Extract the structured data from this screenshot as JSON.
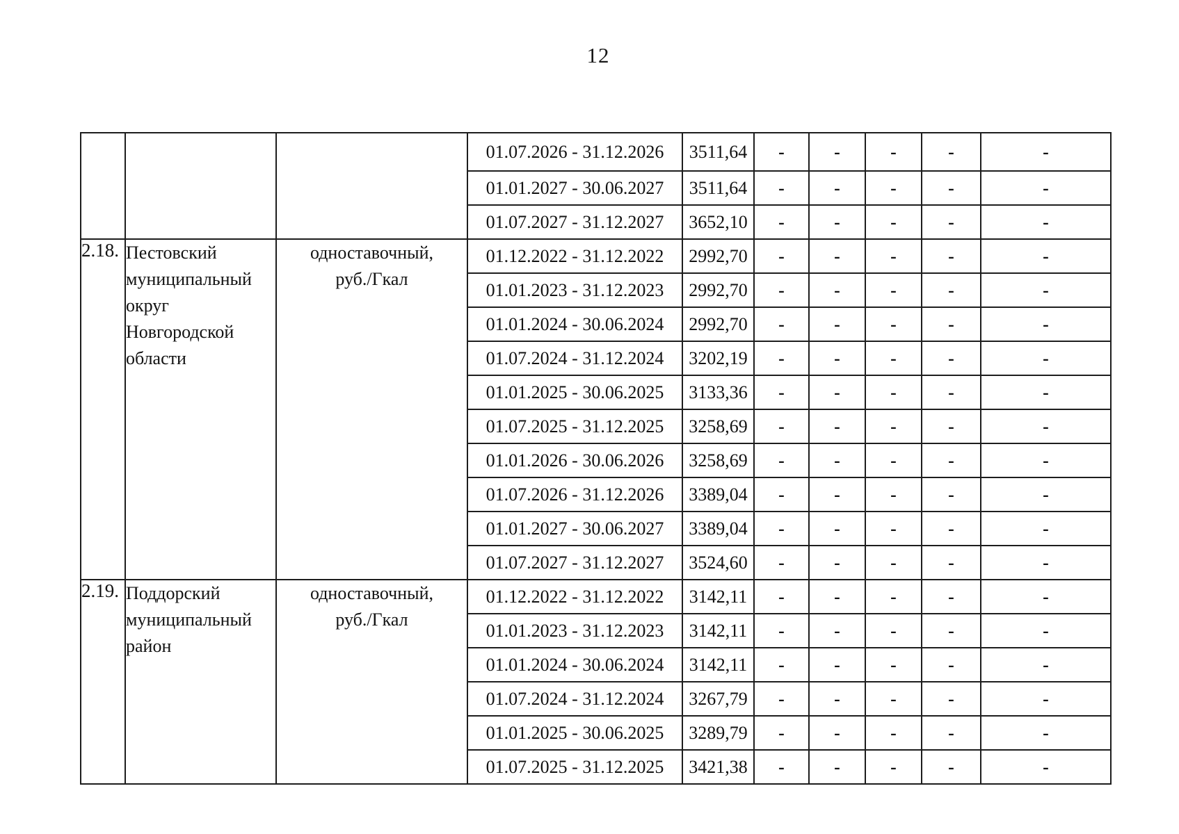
{
  "page": {
    "number": "12"
  },
  "table": {
    "dash": "-",
    "dash_columns": 5,
    "unit_note": "руб./Гкал",
    "sections": [
      {
        "num": "",
        "name_lines": [],
        "type_lines": [],
        "rows": [
          {
            "period": "01.07.2026 - 31.12.2026",
            "value": "3511,64"
          },
          {
            "period": "01.01.2027 - 30.06.2027",
            "value": "3511,64"
          },
          {
            "period": "01.07.2027 - 31.12.2027",
            "value": "3652,10"
          }
        ]
      },
      {
        "num": "2.18.",
        "name_lines": [
          "Пестовский",
          "муниципальный",
          "округ",
          "Новгородской",
          "области"
        ],
        "type_lines": [
          "одноставочный,",
          "руб./Гкал"
        ],
        "rows": [
          {
            "period": "01.12.2022 - 31.12.2022",
            "value": "2992,70"
          },
          {
            "period": "01.01.2023 - 31.12.2023",
            "value": "2992,70"
          },
          {
            "period": "01.01.2024 - 30.06.2024",
            "value": "2992,70"
          },
          {
            "period": "01.07.2024 - 31.12.2024",
            "value": "3202,19"
          },
          {
            "period": "01.01.2025 - 30.06.2025",
            "value": "3133,36"
          },
          {
            "period": "01.07.2025 - 31.12.2025",
            "value": "3258,69"
          },
          {
            "period": "01.01.2026 - 30.06.2026",
            "value": "3258,69"
          },
          {
            "period": "01.07.2026 - 31.12.2026",
            "value": "3389,04"
          },
          {
            "period": "01.01.2027 - 30.06.2027",
            "value": "3389,04"
          },
          {
            "period": "01.07.2027 - 31.12.2027",
            "value": "3524,60"
          }
        ]
      },
      {
        "num": "2.19.",
        "name_lines": [
          "Поддорский",
          "муниципальный",
          "район"
        ],
        "type_lines": [
          "одноставочный,",
          "руб./Гкал"
        ],
        "rows": [
          {
            "period": "01.12.2022 - 31.12.2022",
            "value": "3142,11"
          },
          {
            "period": "01.01.2023 - 31.12.2023",
            "value": "3142,11"
          },
          {
            "period": "01.01.2024 - 30.06.2024",
            "value": "3142,11"
          },
          {
            "period": "01.07.2024 - 31.12.2024",
            "value": "3267,79"
          },
          {
            "period": "01.01.2025 - 30.06.2025",
            "value": "3289,79"
          },
          {
            "period": "01.07.2025 - 31.12.2025",
            "value": "3421,38"
          }
        ]
      }
    ]
  }
}
